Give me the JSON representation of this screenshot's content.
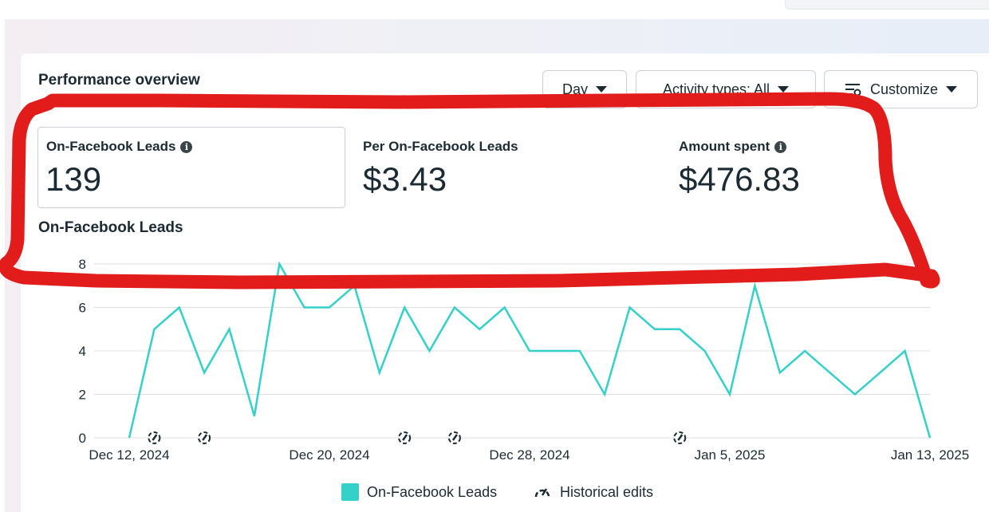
{
  "header": {
    "title": "Performance overview",
    "controls": [
      {
        "label": "Day"
      },
      {
        "label": "Activity types: All"
      },
      {
        "label": "Customize"
      }
    ]
  },
  "metrics": [
    {
      "label": "On-Facebook Leads",
      "value": "139"
    },
    {
      "label": "Per On-Facebook Leads",
      "value": "$3.43"
    },
    {
      "label": "Amount spent",
      "value": "$476.83"
    }
  ],
  "chart_title": "On-Facebook Leads",
  "legend": {
    "series": "On-Facebook Leads",
    "edits": "Historical edits"
  },
  "colors": {
    "series": "#35d0c9",
    "grid": "#dddfe2",
    "annotation": "#e21b1b"
  },
  "chart_data": {
    "type": "line",
    "x": [
      "Dec 12, 2024",
      "Dec 13, 2024",
      "Dec 14, 2024",
      "Dec 15, 2024",
      "Dec 16, 2024",
      "Dec 17, 2024",
      "Dec 18, 2024",
      "Dec 19, 2024",
      "Dec 20, 2024",
      "Dec 21, 2024",
      "Dec 22, 2024",
      "Dec 23, 2024",
      "Dec 24, 2024",
      "Dec 25, 2024",
      "Dec 26, 2024",
      "Dec 27, 2024",
      "Dec 28, 2024",
      "Dec 29, 2024",
      "Dec 30, 2024",
      "Dec 31, 2024",
      "Jan 1, 2025",
      "Jan 2, 2025",
      "Jan 3, 2025",
      "Jan 4, 2025",
      "Jan 5, 2025",
      "Jan 6, 2025",
      "Jan 7, 2025",
      "Jan 8, 2025",
      "Jan 9, 2025",
      "Jan 10, 2025",
      "Jan 11, 2025",
      "Jan 12, 2025",
      "Jan 13, 2025"
    ],
    "series": [
      {
        "name": "On-Facebook Leads",
        "values": [
          0,
          5,
          6,
          3,
          5,
          1,
          8,
          6,
          6,
          7,
          3,
          6,
          4,
          6,
          5,
          6,
          4,
          4,
          4,
          2,
          6,
          5,
          5,
          4,
          2,
          7,
          3,
          4,
          3,
          2,
          3,
          4,
          0
        ]
      }
    ],
    "x_tick_labels": [
      "Dec 12, 2024",
      "Dec 20, 2024",
      "Dec 28, 2024",
      "Jan 5, 2025",
      "Jan 13, 2025"
    ],
    "x_tick_index": [
      0,
      8,
      16,
      24,
      32
    ],
    "y_ticks": [
      0,
      2,
      4,
      6,
      8
    ],
    "ylim": [
      0,
      8
    ],
    "grid": true,
    "historical_edits_at": [
      "Dec 13, 2024",
      "Dec 15, 2024",
      "Dec 23, 2024",
      "Dec 25, 2024",
      "Jan 3, 2025"
    ],
    "legend": "bottom-center"
  }
}
